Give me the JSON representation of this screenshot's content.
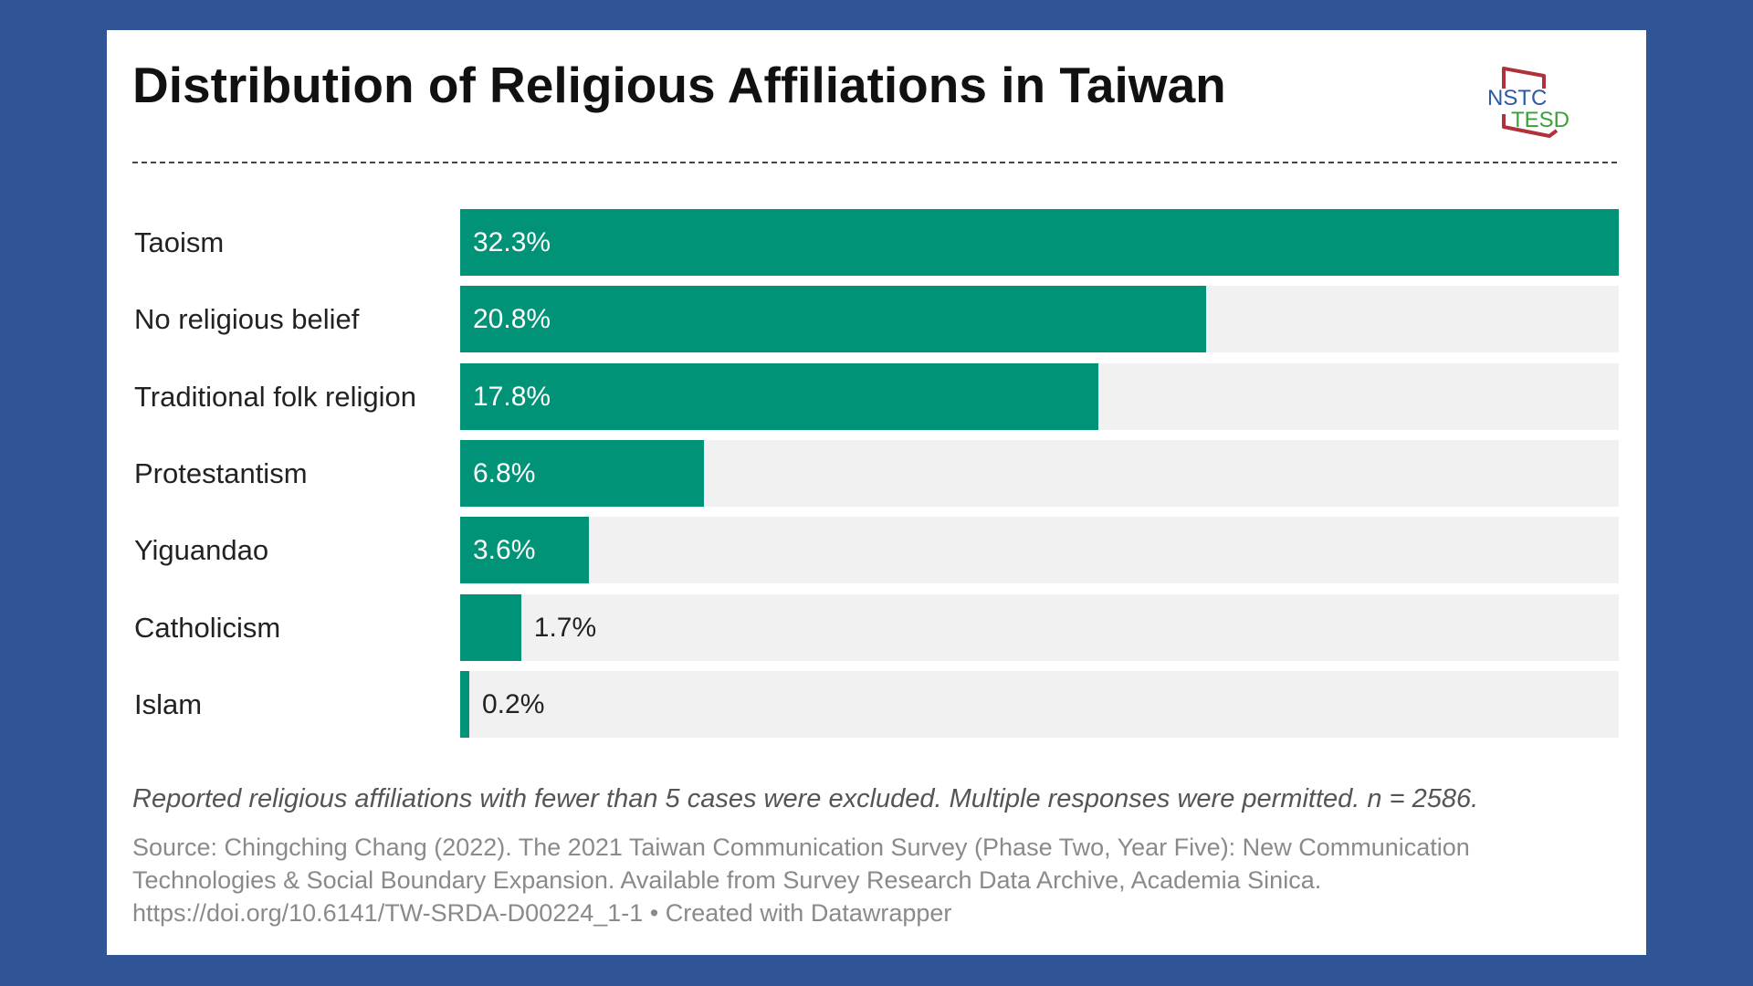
{
  "chart_data": {
    "type": "bar",
    "orientation": "horizontal",
    "title": "Distribution of Religious Affiliations in Taiwan",
    "categories": [
      "Taoism",
      "No religious belief",
      "Traditional folk religion",
      "Protestantism",
      "Yiguandao",
      "Catholicism",
      "Islam"
    ],
    "values": [
      32.3,
      20.8,
      17.8,
      6.8,
      3.6,
      1.7,
      0.2
    ],
    "value_labels": [
      "32.3%",
      "20.8%",
      "17.8%",
      "6.8%",
      "3.6%",
      "1.7%",
      "0.2%"
    ],
    "unit": "%",
    "xlim": [
      0,
      32.3
    ],
    "grid": false,
    "legend": "none",
    "bar_color": "#009377",
    "track_color": "#f1f1f1"
  },
  "logo": {
    "line1": "NSTC",
    "line2": "TESD"
  },
  "colors": {
    "background": "#2f5597",
    "card": "#ffffff",
    "bar": "#009377",
    "logo_blue": "#2a5aa8",
    "logo_green": "#3aa13a",
    "logo_red": "#b0303c"
  },
  "note": "Reported religious affiliations with fewer than 5 cases were excluded. Multiple responses were permitted. n = 2586.",
  "source": {
    "line1": "Source: Chingching Chang (2022). The 2021 Taiwan Communication Survey (Phase Two, Year Five): New Communication",
    "line2": "Technologies & Social Boundary Expansion. Available from Survey Research Data Archive, Academia Sinica.",
    "line3": "https://doi.org/10.6141/TW-SRDA-D00224_1-1 • Created with Datawrapper"
  }
}
